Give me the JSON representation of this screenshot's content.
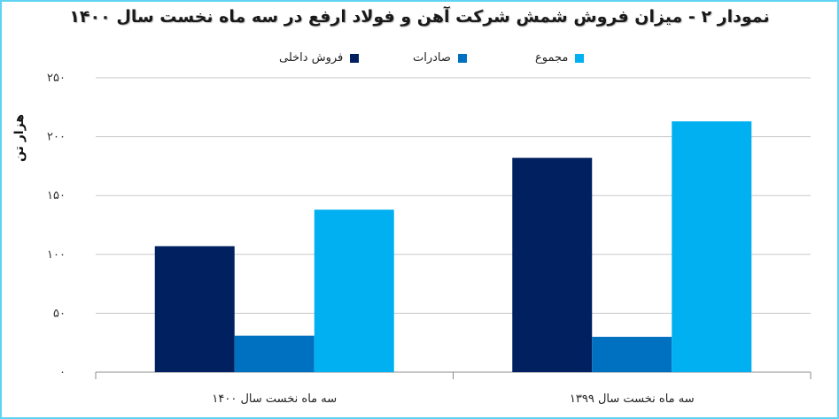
{
  "chart_data": {
    "type": "bar",
    "title": "نمودار ۲ - میزان فروش شمش شرکت آهن و فولاد ارفع در سه ماه نخست سال ۱۴۰۰",
    "ylabel": "هزار تن",
    "xlabel": "",
    "ylim": [
      0,
      250
    ],
    "yticks": [
      0,
      50,
      100,
      150,
      200,
      250
    ],
    "ytick_labels": [
      "۰",
      "۵۰",
      "۱۰۰",
      "۱۵۰",
      "۲۰۰",
      "۲۵۰"
    ],
    "categories": [
      "سه ماه نخست سال ۱۴۰۰",
      "سه ماه نخست سال ۱۳۹۹"
    ],
    "series": [
      {
        "name": "فروش داخلی",
        "color": "#002060",
        "values": [
          107,
          182
        ]
      },
      {
        "name": "صادرات",
        "color": "#0070c0",
        "values": [
          31,
          30
        ]
      },
      {
        "name": "مجموع",
        "color": "#00b0f0",
        "values": [
          138,
          213
        ]
      }
    ],
    "grid": true,
    "legend_position": "top"
  }
}
